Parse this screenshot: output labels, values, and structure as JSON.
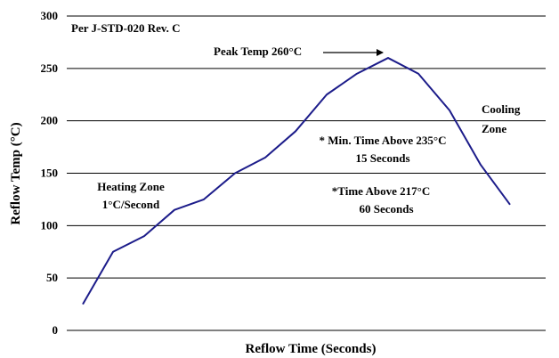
{
  "chart_data": {
    "type": "line",
    "title": "",
    "xlabel": "Reflow Time (Seconds)",
    "ylabel": "Reflow Temp (°C)",
    "ylim": [
      0,
      300
    ],
    "yticks": [
      0,
      50,
      100,
      150,
      200,
      250,
      300
    ],
    "grid": true,
    "x_axis_ticks_shown": false,
    "series": [
      {
        "color": "#1c1c8a",
        "x": [
          0,
          1,
          2,
          3,
          4,
          5,
          6,
          7,
          8,
          9,
          10,
          11,
          12,
          13,
          14
        ],
        "y": [
          25,
          75,
          90,
          115,
          125,
          150,
          165,
          190,
          225,
          245,
          260,
          245,
          210,
          158,
          120
        ]
      }
    ],
    "annotations": {
      "standard": "Per J-STD-020 Rev. C",
      "peak": "Peak Temp 260°C",
      "heating_line1": "Heating Zone",
      "heating_line2": "1°C/Second",
      "min_time_line1": "* Min. Time Above 235°C",
      "min_time_line2": "15 Seconds",
      "time_above_line1": "*Time Above 217°C",
      "time_above_line2": "60 Seconds",
      "cooling_line1": "Cooling",
      "cooling_line2": "Zone"
    }
  }
}
